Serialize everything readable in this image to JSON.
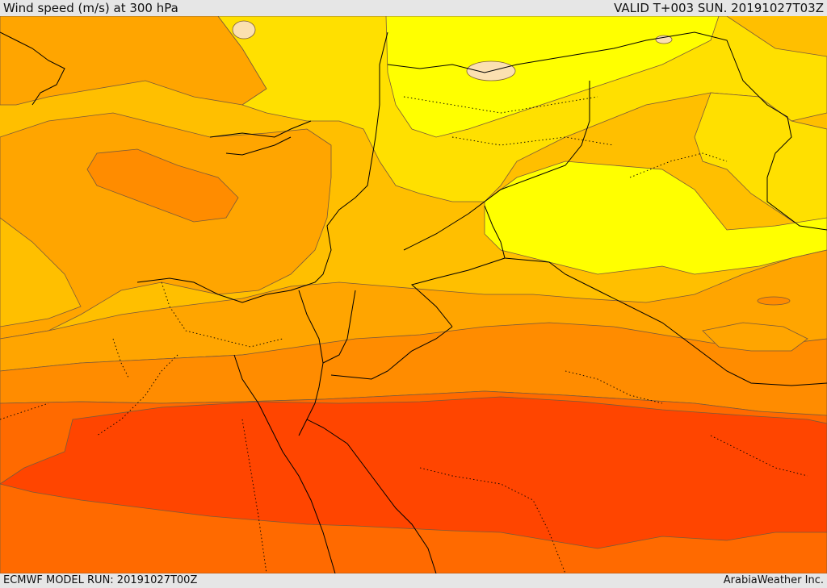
{
  "header": {
    "title": "Wind speed (m/s) at 300 hPa",
    "valid": "VALID T+003 SUN. 20191027T03Z"
  },
  "footer": {
    "model_run": "ECMWF MODEL RUN: 20191027T00Z",
    "credit": "ArabiaWeather Inc."
  },
  "palette": {
    "lightest": "#ffff00",
    "yellow": "#ffe000",
    "gold": "#ffbf00",
    "orange_light": "#ffa500",
    "orange": "#ff8c00",
    "orange_dark": "#ff6a00",
    "red_orange": "#ff4500",
    "pale_peach": "#fbe0b0",
    "border": "#000000",
    "contour": "#7a5a3a"
  }
}
